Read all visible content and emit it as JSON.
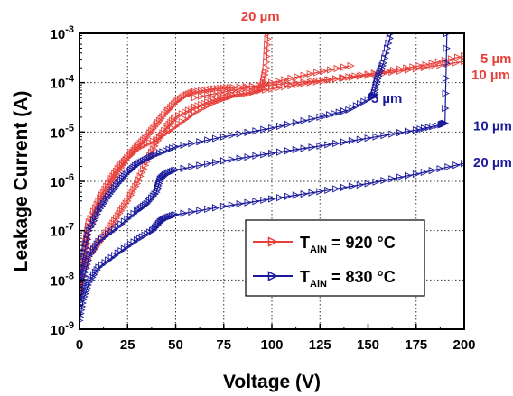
{
  "chart_data": {
    "type": "line",
    "title": "",
    "xlabel": "Voltage (V)",
    "ylabel": "Leakage Current (A)",
    "xlim": [
      0,
      200
    ],
    "ylim": [
      1e-09,
      0.001
    ],
    "yscale": "log",
    "grid": true,
    "x_ticks": [
      "0",
      "25",
      "50",
      "75",
      "100",
      "125",
      "150",
      "175",
      "200"
    ],
    "y_ticks": [
      {
        "base": "10",
        "exp": "-9"
      },
      {
        "base": "10",
        "exp": "-8"
      },
      {
        "base": "10",
        "exp": "-7"
      },
      {
        "base": "10",
        "exp": "-6"
      },
      {
        "base": "10",
        "exp": "-5"
      },
      {
        "base": "10",
        "exp": "-4"
      },
      {
        "base": "10",
        "exp": "-3"
      }
    ],
    "colors": {
      "red": "#e8413c",
      "blue": "#1a1a9c"
    },
    "legend": {
      "position": "lower-right",
      "entries": [
        {
          "prefix": "T",
          "sub": "AlN",
          "suffix": " = 920 °C",
          "color": "#e8413c"
        },
        {
          "prefix": "T",
          "sub": "AlN",
          "suffix": " = 830 °C",
          "color": "#1a1a9c"
        }
      ]
    },
    "series": [
      {
        "label": "20 µm",
        "color": "#e8413c",
        "group": "920 °C",
        "points": [
          [
            0,
            4e-09
          ],
          [
            2,
            1.5e-08
          ],
          [
            5,
            3e-08
          ],
          [
            10,
            5.5e-08
          ],
          [
            15,
            1e-07
          ],
          [
            20,
            2e-07
          ],
          [
            25,
            4e-07
          ],
          [
            30,
            9e-07
          ],
          [
            35,
            2.5e-06
          ],
          [
            40,
            6e-06
          ],
          [
            45,
            1.2e-05
          ],
          [
            50,
            2e-05
          ],
          [
            60,
            3.2e-05
          ],
          [
            70,
            4.5e-05
          ],
          [
            80,
            5.6e-05
          ],
          [
            90,
            6.4e-05
          ],
          [
            95,
            7.5e-05
          ],
          [
            97,
            0.0002
          ],
          [
            98,
            0.001
          ]
        ]
      },
      {
        "label": "5 µm",
        "color": "#e8413c",
        "group": "920 °C",
        "points": [
          [
            0,
            6e-09
          ],
          [
            3,
            5e-08
          ],
          [
            5,
            1.5e-07
          ],
          [
            10,
            4e-07
          ],
          [
            15,
            9e-07
          ],
          [
            20,
            1.8e-06
          ],
          [
            25,
            3e-06
          ],
          [
            30,
            4.5e-06
          ],
          [
            40,
            7e-06
          ],
          [
            50,
            1.3e-05
          ],
          [
            60,
            2.5e-05
          ],
          [
            70,
            4e-05
          ],
          [
            80,
            5.5e-05
          ],
          [
            100,
            7.5e-05
          ],
          [
            120,
            0.0001
          ],
          [
            140,
            0.00013
          ],
          [
            160,
            0.00017
          ],
          [
            180,
            0.00023
          ],
          [
            200,
            0.00035
          ]
        ]
      },
      {
        "label": "10 µm",
        "color": "#e8413c",
        "group": "920 °C",
        "points": [
          [
            0,
            5e-09
          ],
          [
            3,
            3e-08
          ],
          [
            5,
            1e-07
          ],
          [
            10,
            3e-07
          ],
          [
            15,
            7e-07
          ],
          [
            20,
            1.5e-06
          ],
          [
            25,
            3e-06
          ],
          [
            30,
            5e-06
          ],
          [
            35,
            8e-06
          ],
          [
            40,
            1.4e-05
          ],
          [
            45,
            2.5e-05
          ],
          [
            50,
            4e-05
          ],
          [
            55,
            5.5e-05
          ],
          [
            60,
            6.5e-05
          ],
          [
            70,
            7.5e-05
          ],
          [
            80,
            8e-05
          ],
          [
            100,
            9e-05
          ],
          [
            125,
            0.00011
          ],
          [
            150,
            0.00014
          ],
          [
            175,
            0.00019
          ],
          [
            200,
            0.00027
          ]
        ]
      },
      {
        "label": "",
        "color": "#e8413c",
        "group": "920 °C",
        "points": [
          [
            60,
            5e-05
          ],
          [
            80,
            7e-05
          ],
          [
            100,
            0.0001
          ],
          [
            120,
            0.00015
          ],
          [
            141,
            0.00022
          ]
        ]
      },
      {
        "label": "5 µm",
        "color": "#1a1a9c",
        "group": "830 °C",
        "points": [
          [
            0,
            1e-08
          ],
          [
            2,
            3e-08
          ],
          [
            5,
            1e-07
          ],
          [
            10,
            2.5e-07
          ],
          [
            15,
            5e-07
          ],
          [
            20,
            9e-07
          ],
          [
            25,
            1.5e-06
          ],
          [
            30,
            2.2e-06
          ],
          [
            35,
            2.8e-06
          ],
          [
            40,
            3.5e-06
          ],
          [
            50,
            5e-06
          ],
          [
            75,
            8e-06
          ],
          [
            100,
            1.2e-05
          ],
          [
            125,
            2e-05
          ],
          [
            140,
            2.8e-05
          ],
          [
            152,
            5e-05
          ],
          [
            153,
            5.5e-05
          ],
          [
            155,
            0.00012
          ],
          [
            158,
            0.00025
          ],
          [
            162,
            0.001
          ]
        ]
      },
      {
        "label": "10 µm",
        "color": "#1a1a9c",
        "group": "830 °C",
        "points": [
          [
            0,
            3e-09
          ],
          [
            2,
            1e-08
          ],
          [
            5,
            3e-08
          ],
          [
            10,
            6e-08
          ],
          [
            20,
            1.2e-07
          ],
          [
            30,
            2.5e-07
          ],
          [
            35,
            3.5e-07
          ],
          [
            40,
            6e-07
          ],
          [
            42,
            1.1e-06
          ],
          [
            45,
            1.4e-06
          ],
          [
            50,
            1.7e-06
          ],
          [
            75,
            2.6e-06
          ],
          [
            100,
            3.7e-06
          ],
          [
            125,
            5.2e-06
          ],
          [
            150,
            7.5e-06
          ],
          [
            175,
            1.1e-05
          ],
          [
            188,
            1.4e-05
          ],
          [
            190,
            1.5e-05
          ],
          [
            191,
            0.001
          ]
        ]
      },
      {
        "label": "20 µm",
        "color": "#1a1a9c",
        "group": "830 °C",
        "points": [
          [
            0,
            1.5e-09
          ],
          [
            2,
            4e-09
          ],
          [
            5,
            9e-09
          ],
          [
            10,
            1.8e-08
          ],
          [
            20,
            3.5e-08
          ],
          [
            30,
            6.5e-08
          ],
          [
            38,
            1e-07
          ],
          [
            42,
            1.5e-07
          ],
          [
            45,
            1.8e-07
          ],
          [
            50,
            2.1e-07
          ],
          [
            75,
            3.1e-07
          ],
          [
            100,
            4.4e-07
          ],
          [
            125,
            6.2e-07
          ],
          [
            150,
            9e-07
          ],
          [
            175,
            1.4e-06
          ],
          [
            200,
            2.3e-06
          ]
        ]
      }
    ],
    "annotations": [
      {
        "text": "20 µm",
        "color": "#e8413c",
        "at": [
          98,
          0.001
        ]
      },
      {
        "text": "5 µm",
        "color": "#e8413c",
        "at": [
          200,
          0.00035
        ]
      },
      {
        "text": "10 µm",
        "color": "#e8413c",
        "at": [
          200,
          0.00027
        ]
      },
      {
        "text": "5 µm",
        "color": "#1a1a9c",
        "at": [
          153,
          5e-05
        ]
      },
      {
        "text": "10 µm",
        "color": "#1a1a9c",
        "at": [
          200,
          1.4e-05
        ]
      },
      {
        "text": "20 µm",
        "color": "#1a1a9c",
        "at": [
          200,
          2.3e-06
        ]
      }
    ]
  }
}
